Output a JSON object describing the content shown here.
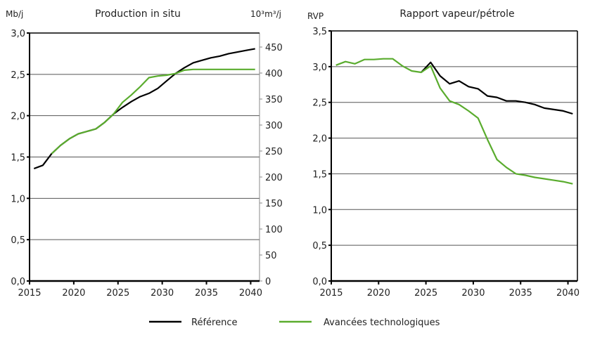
{
  "legend": {
    "items": [
      {
        "label": "Référence",
        "color": "#000000"
      },
      {
        "label": "Avancées technologiques",
        "color": "#5aac2e"
      }
    ]
  },
  "chart_data": [
    {
      "type": "line",
      "title": "Production in situ",
      "ylabel": "Mb/j",
      "y2label": "10³m³/j",
      "ylim": [
        0,
        3.0
      ],
      "yticks": [
        "0,0",
        "0,5",
        "1,0",
        "1,5",
        "2,0",
        "2,5",
        "3,0"
      ],
      "y2lim": [
        0,
        477
      ],
      "y2ticks": [
        "0",
        "50",
        "100",
        "150",
        "200",
        "250",
        "300",
        "350",
        "400",
        "450"
      ],
      "xticks": [
        "2015",
        "2020",
        "2025",
        "2030",
        "2035",
        "2040"
      ],
      "grid": true,
      "x": [
        2015,
        2016,
        2017,
        2018,
        2019,
        2020,
        2021,
        2022,
        2023,
        2024,
        2025,
        2026,
        2027,
        2028,
        2029,
        2030,
        2031,
        2032,
        2033,
        2034,
        2035,
        2036,
        2037,
        2038,
        2039,
        2040
      ],
      "series": [
        {
          "name": "Référence",
          "color": "#000000",
          "values": [
            1.36,
            1.4,
            1.54,
            1.64,
            1.72,
            1.78,
            1.81,
            1.84,
            1.92,
            2.02,
            2.1,
            2.17,
            2.23,
            2.27,
            2.33,
            2.42,
            2.51,
            2.58,
            2.64,
            2.67,
            2.7,
            2.72,
            2.75,
            2.77,
            2.79,
            2.81
          ]
        },
        {
          "name": "Avancées technologiques",
          "color": "#5aac2e",
          "values": [
            null,
            null,
            1.54,
            1.64,
            1.72,
            1.78,
            1.81,
            1.84,
            1.92,
            2.02,
            2.16,
            2.25,
            2.35,
            2.46,
            2.48,
            2.49,
            2.51,
            2.55,
            2.56,
            2.56,
            2.56,
            2.56,
            2.56,
            2.56,
            2.56,
            2.56
          ]
        }
      ]
    },
    {
      "type": "line",
      "title": "Rapport vapeur/pétrole",
      "ylabel": "RVP",
      "ylim": [
        0,
        3.5
      ],
      "yticks": [
        "0,0",
        "0,5",
        "1,0",
        "1,5",
        "2,0",
        "2,5",
        "3,0",
        "3,5"
      ],
      "xticks": [
        "2015",
        "2020",
        "2025",
        "2030",
        "2035",
        "2040"
      ],
      "grid": true,
      "x": [
        2015,
        2016,
        2017,
        2018,
        2019,
        2020,
        2021,
        2022,
        2023,
        2024,
        2025,
        2026,
        2027,
        2028,
        2029,
        2030,
        2031,
        2032,
        2033,
        2034,
        2035,
        2036,
        2037,
        2038,
        2039,
        2040
      ],
      "series": [
        {
          "name": "Référence",
          "color": "#000000",
          "values": [
            null,
            null,
            null,
            null,
            null,
            null,
            null,
            null,
            null,
            2.92,
            3.06,
            2.87,
            2.76,
            2.8,
            2.72,
            2.69,
            2.59,
            2.57,
            2.52,
            2.52,
            2.5,
            2.47,
            2.42,
            2.4,
            2.38,
            2.34
          ]
        },
        {
          "name": "Avancées technologiques",
          "color": "#5aac2e",
          "values": [
            3.02,
            3.07,
            3.04,
            3.1,
            3.1,
            3.11,
            3.11,
            3.01,
            2.94,
            2.92,
            3.01,
            2.7,
            2.52,
            2.47,
            2.38,
            2.28,
            1.98,
            1.7,
            1.59,
            1.5,
            1.48,
            1.45,
            1.43,
            1.41,
            1.39,
            1.36
          ]
        }
      ]
    }
  ]
}
